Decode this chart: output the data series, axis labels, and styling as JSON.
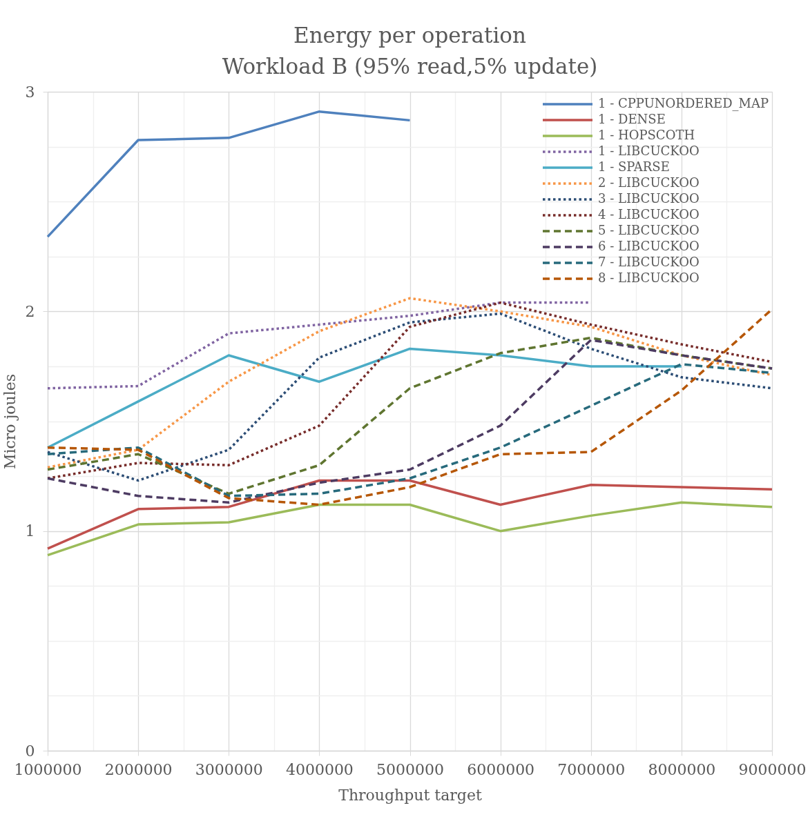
{
  "chart_data": {
    "type": "line",
    "title": "Energy per operation",
    "subtitle": "Workload B (95% read,5% update)",
    "xlabel": "Throughput target",
    "ylabel": "Micro joules",
    "x": [
      1000000,
      2000000,
      3000000,
      4000000,
      5000000,
      6000000,
      7000000,
      8000000,
      9000000
    ],
    "xlim": [
      1000000,
      9000000
    ],
    "xticks": [
      1000000,
      {
        "value": 1500000,
        "label": null
      },
      2000000,
      {
        "value": 2500000,
        "label": null
      },
      3000000,
      {
        "value": 3500000,
        "label": null
      },
      4000000,
      {
        "value": 4500000,
        "label": null
      },
      5000000,
      {
        "value": 5500000,
        "label": null
      },
      6000000,
      {
        "value": 6500000,
        "label": null
      },
      7000000,
      {
        "value": 7500000,
        "label": null
      },
      8000000,
      {
        "value": 8500000,
        "label": null
      },
      9000000
    ],
    "ylim": [
      0,
      3
    ],
    "yticks": [
      0,
      {
        "value": 0.25,
        "label": null
      },
      {
        "value": 0.5,
        "label": null
      },
      {
        "value": 0.75,
        "label": null
      },
      1,
      {
        "value": 1.25,
        "label": null
      },
      {
        "value": 1.5,
        "label": null
      },
      {
        "value": 1.75,
        "label": null
      },
      2,
      {
        "value": 2.25,
        "label": null
      },
      {
        "value": 2.5,
        "label": null
      },
      {
        "value": 2.75,
        "label": null
      },
      3
    ],
    "grid": true,
    "legend": "top right",
    "series": [
      {
        "name": "1 - CPPUNORDERED_MAP",
        "color": "#4f81bd",
        "line_style": "solid",
        "values": [
          2.34,
          2.78,
          2.79,
          2.91,
          2.87,
          null,
          null,
          null,
          null
        ]
      },
      {
        "name": "1 - DENSE",
        "color": "#c0504d",
        "line_style": "solid",
        "values": [
          0.92,
          1.1,
          1.11,
          1.23,
          1.23,
          1.12,
          1.21,
          1.2,
          1.19
        ]
      },
      {
        "name": "1 - HOPSCOTH",
        "color": "#9bbb59",
        "line_style": "solid",
        "values": [
          0.89,
          1.03,
          1.04,
          1.12,
          1.12,
          1.0,
          1.07,
          1.13,
          1.11
        ]
      },
      {
        "name": "1 - LIBCUCKOO",
        "color": "#8064a2",
        "line_style": "dotted",
        "values": [
          1.65,
          1.66,
          1.9,
          1.94,
          1.98,
          2.04,
          2.04,
          null,
          null
        ]
      },
      {
        "name": "1 - SPARSE",
        "color": "#4bacc6",
        "line_style": "solid",
        "values": [
          1.38,
          1.59,
          1.8,
          1.68,
          1.83,
          1.8,
          1.75,
          1.75,
          null
        ]
      },
      {
        "name": "2 - LIBCUCKOO",
        "color": "#f79646",
        "line_style": "dotted",
        "values": [
          1.29,
          1.37,
          1.68,
          1.91,
          2.06,
          2.0,
          1.93,
          1.8,
          1.71
        ]
      },
      {
        "name": "3 - LIBCUCKOO",
        "color": "#2c4d75",
        "line_style": "dotted",
        "values": [
          1.36,
          1.23,
          1.37,
          1.79,
          1.95,
          1.99,
          1.83,
          1.7,
          1.65
        ]
      },
      {
        "name": "4 - LIBCUCKOO",
        "color": "#772c2a",
        "line_style": "dotted",
        "values": [
          1.24,
          1.31,
          1.3,
          1.48,
          1.93,
          2.04,
          1.94,
          1.85,
          1.77
        ]
      },
      {
        "name": "5 - LIBCUCKOO",
        "color": "#5f7530",
        "line_style": "dashed",
        "values": [
          1.28,
          1.35,
          1.17,
          1.3,
          1.65,
          1.81,
          1.88,
          1.8,
          1.74
        ]
      },
      {
        "name": "6 - LIBCUCKOO",
        "color": "#4d3b62",
        "line_style": "dashed",
        "values": [
          1.24,
          1.16,
          1.13,
          1.22,
          1.28,
          1.48,
          1.87,
          1.8,
          1.74
        ]
      },
      {
        "name": "7 - LIBCUCKOO",
        "color": "#276a7c",
        "line_style": "dashed",
        "values": [
          1.35,
          1.38,
          1.16,
          1.17,
          1.24,
          1.38,
          1.57,
          1.76,
          1.72
        ]
      },
      {
        "name": "8 - LIBCUCKOO",
        "color": "#b65708",
        "line_style": "dashed",
        "values": [
          1.38,
          1.37,
          1.15,
          1.12,
          1.2,
          1.35,
          1.36,
          1.64,
          2.01
        ]
      }
    ]
  }
}
